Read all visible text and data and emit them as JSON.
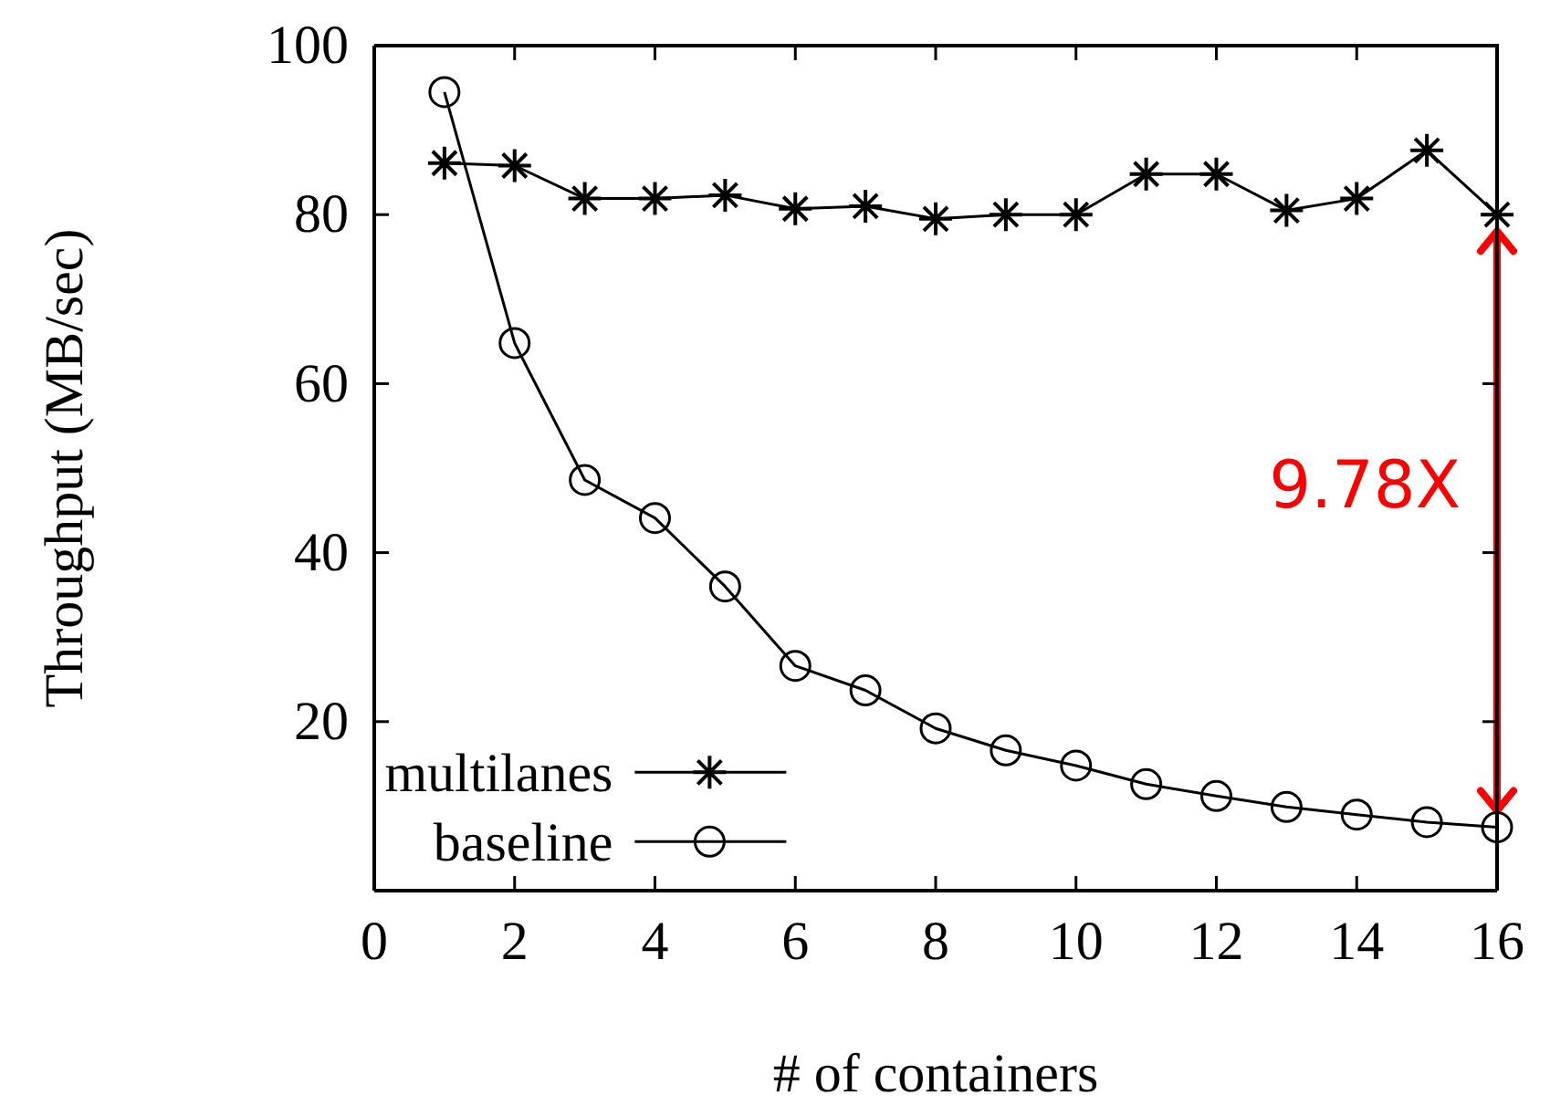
{
  "chart_data": {
    "type": "line",
    "xlabel": "# of containers",
    "ylabel": "Throughput (MB/sec)",
    "x": [
      1,
      2,
      3,
      4,
      5,
      6,
      7,
      8,
      9,
      10,
      11,
      12,
      13,
      14,
      15,
      16
    ],
    "series": [
      {
        "name": "multilanes",
        "color": "#000000",
        "marker": "cross",
        "values": [
          86.1,
          85.8,
          81.9,
          81.9,
          82.3,
          80.7,
          81,
          79.5,
          80,
          80,
          84.8,
          84.8,
          80.5,
          81.9,
          87.6,
          80
        ]
      },
      {
        "name": "baseline",
        "color": "#000000",
        "marker": "circle",
        "values": [
          94.5,
          64.8,
          48.6,
          44.1,
          36,
          26.6,
          23.7,
          19.2,
          16.6,
          14.8,
          12.6,
          11.2,
          9.9,
          9,
          8.1,
          7.5
        ]
      }
    ],
    "xlim": [
      0,
      16
    ],
    "xticks": [
      0,
      2,
      4,
      6,
      8,
      10,
      12,
      14,
      16
    ],
    "ylim": [
      0,
      100
    ],
    "yticks": [
      20,
      40,
      60,
      80,
      100
    ],
    "legend": "bottom",
    "grid": false,
    "annotations": [
      "9.78X"
    ]
  }
}
